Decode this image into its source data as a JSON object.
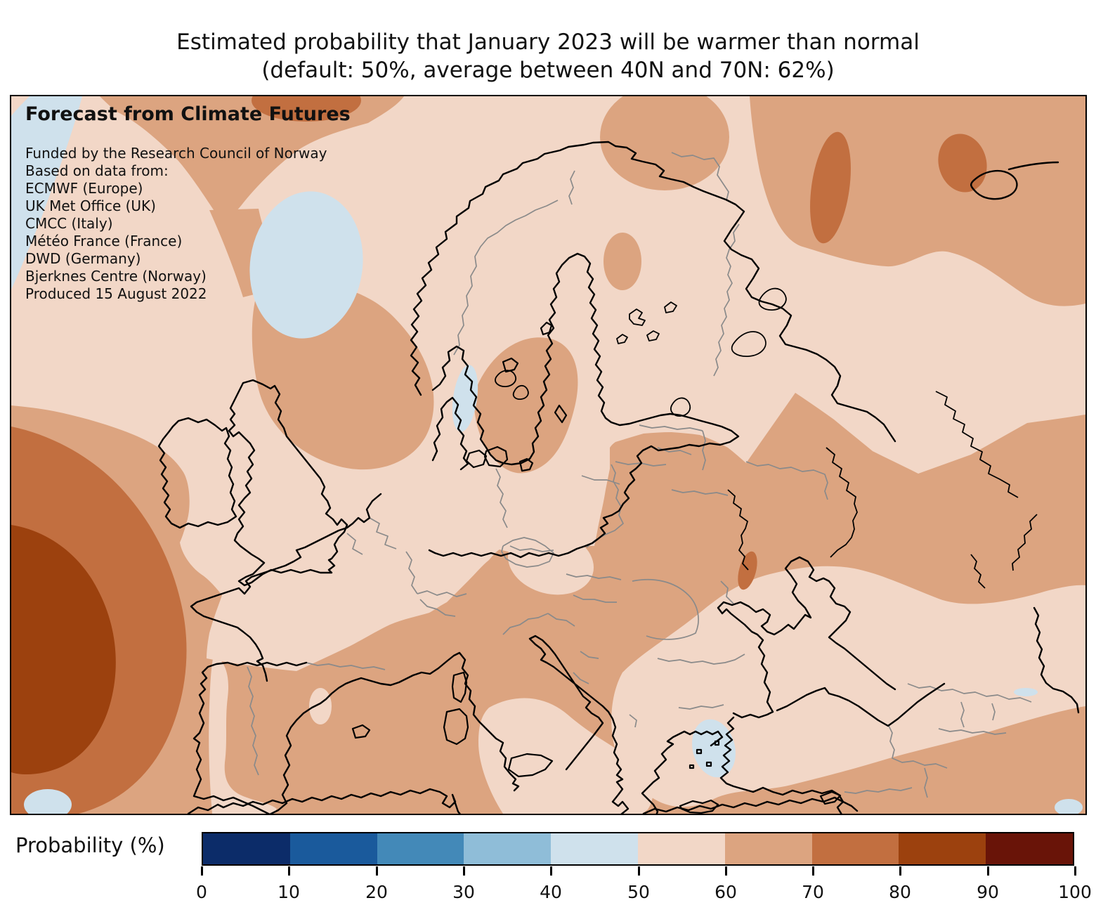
{
  "title": {
    "line1": "Estimated probability that January 2023 will be warmer than normal",
    "line2": "(default: 50%, average between 40N and 70N: 62%)"
  },
  "map": {
    "heading": "Forecast from Climate Futures",
    "credits": [
      "Funded by the Research Council of Norway",
      "Based on data from:",
      "ECMWF (Europe)",
      "UK Met Office (UK)",
      "CMCC (Italy)",
      "Météo France (France)",
      "DWD (Germany)",
      "Bjerknes Centre (Norway)",
      "Produced 15 August 2022"
    ]
  },
  "colorbar": {
    "label": "Probability (%)",
    "ticks": [
      "0",
      "10",
      "20",
      "30",
      "40",
      "50",
      "60",
      "70",
      "80",
      "90",
      "100"
    ],
    "colors": [
      "#0c2c69",
      "#1a5a9c",
      "#4389b8",
      "#8fbdd8",
      "#cfe1ec",
      "#f2d7c7",
      "#dca480",
      "#c26f40",
      "#9c410e",
      "#691408"
    ]
  },
  "chart_data": {
    "type": "heatmap",
    "title": "Estimated probability that January 2023 will be warmer than normal",
    "subtitle": "(default: 50%, average between 40N and 70N: 62%)",
    "legend_label": "Probability (%)",
    "legend_position": "bottom",
    "value_range": [
      0,
      100
    ],
    "bins": [
      {
        "range": [
          0,
          10
        ],
        "color": "#0c2c69"
      },
      {
        "range": [
          10,
          20
        ],
        "color": "#1a5a9c"
      },
      {
        "range": [
          20,
          30
        ],
        "color": "#4389b8"
      },
      {
        "range": [
          30,
          40
        ],
        "color": "#8fbdd8"
      },
      {
        "range": [
          40,
          50
        ],
        "color": "#cfe1ec"
      },
      {
        "range": [
          50,
          60
        ],
        "color": "#f2d7c7"
      },
      {
        "range": [
          60,
          70
        ],
        "color": "#dca480"
      },
      {
        "range": [
          70,
          80
        ],
        "color": "#c26f40"
      },
      {
        "range": [
          80,
          90
        ],
        "color": "#9c410e"
      },
      {
        "range": [
          90,
          100
        ],
        "color": "#691408"
      }
    ],
    "annotations": {
      "default_probability_pct": 50,
      "average_40N_70N_pct": 62
    },
    "region_readings": [
      {
        "region": "Atlantic southwest of Ireland / west of Iberia (core)",
        "probability_pct": "80-90"
      },
      {
        "region": "Atlantic ring around core, bottom-left",
        "probability_pct": "70-80"
      },
      {
        "region": "Iberia, western Mediterranean, Alps, Balkans, Eastern Europe, Ukraine, south Russia",
        "probability_pct": "60-70"
      },
      {
        "region": "France, Germany, England, Fennoscandia interior, northwest Russia, Black Sea, Turkey",
        "probability_pct": "50-60"
      },
      {
        "region": "North Sea patch, top-left corner band, Oslo fjord, Aegean Sea, small Caucasus/Anatolia spots",
        "probability_pct": "40-50"
      },
      {
        "region": "Kola/White Sea spots and top-center spot",
        "probability_pct": "70-80"
      }
    ]
  }
}
